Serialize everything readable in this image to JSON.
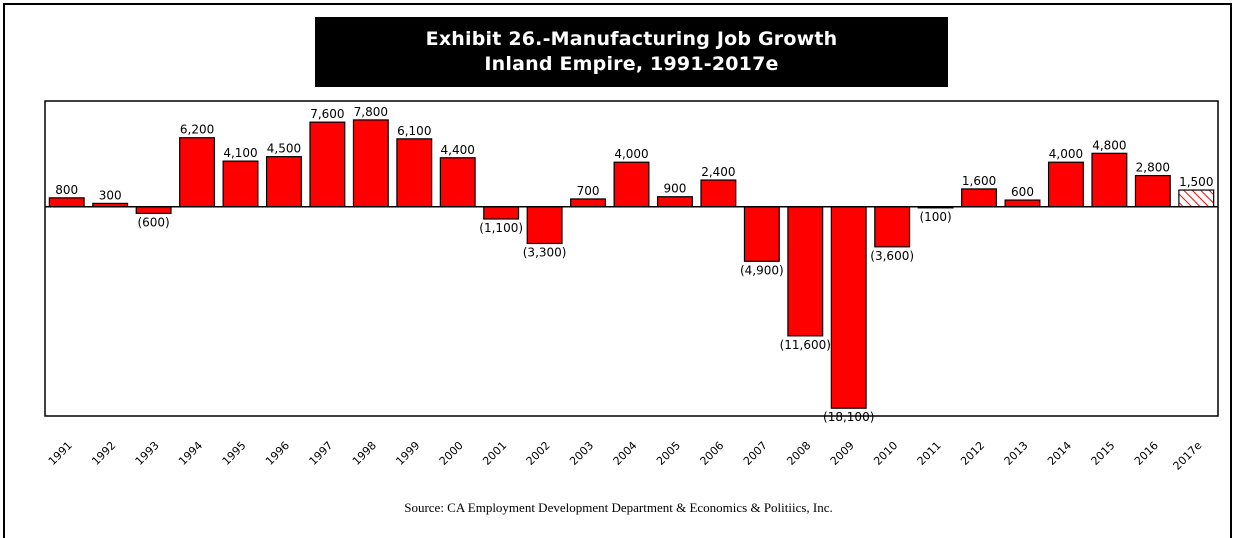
{
  "title": {
    "line1": "Exhibit 26.-Manufacturing Job Growth",
    "line2": "Inland Empire, 1991-2017e"
  },
  "source": "Source: CA Employment Development Department & Economics & Politiics, Inc.",
  "colors": {
    "bar": "#ff0000",
    "estimate_hatch": "#ff0000",
    "axis": "#000000"
  },
  "chart_data": {
    "type": "bar",
    "title": "Exhibit 26.-Manufacturing Job Growth Inland Empire, 1991-2017e",
    "categories": [
      "1991",
      "1992",
      "1993",
      "1994",
      "1995",
      "1996",
      "1997",
      "1998",
      "1999",
      "2000",
      "2001",
      "2002",
      "2003",
      "2004",
      "2005",
      "2006",
      "2007",
      "2008",
      "2009",
      "2010",
      "2011",
      "2012",
      "2013",
      "2014",
      "2015",
      "2016",
      "2017e"
    ],
    "values": [
      800,
      300,
      -600,
      6200,
      4100,
      4500,
      7600,
      7800,
      6100,
      4400,
      -1100,
      -3300,
      700,
      4000,
      900,
      2400,
      -4900,
      -11600,
      -18100,
      -3600,
      -100,
      1600,
      600,
      4000,
      4800,
      2800,
      1500
    ],
    "labels": [
      "800",
      "300",
      "(600)",
      "6,200",
      "4,100",
      "4,500",
      "7,600",
      "7,800",
      "6,100",
      "4,400",
      "(1,100)",
      "(3,300)",
      "700",
      "4,000",
      "900",
      "2,400",
      "(4,900)",
      "(11,600)",
      "(18,100)",
      "(3,600)",
      "(100)",
      "1,600",
      "600",
      "4,000",
      "4,800",
      "2,800",
      "1,500"
    ],
    "estimate_index": 26,
    "ylim": [
      -18800,
      9500
    ],
    "grid": false,
    "xlabel": "",
    "ylabel": ""
  }
}
